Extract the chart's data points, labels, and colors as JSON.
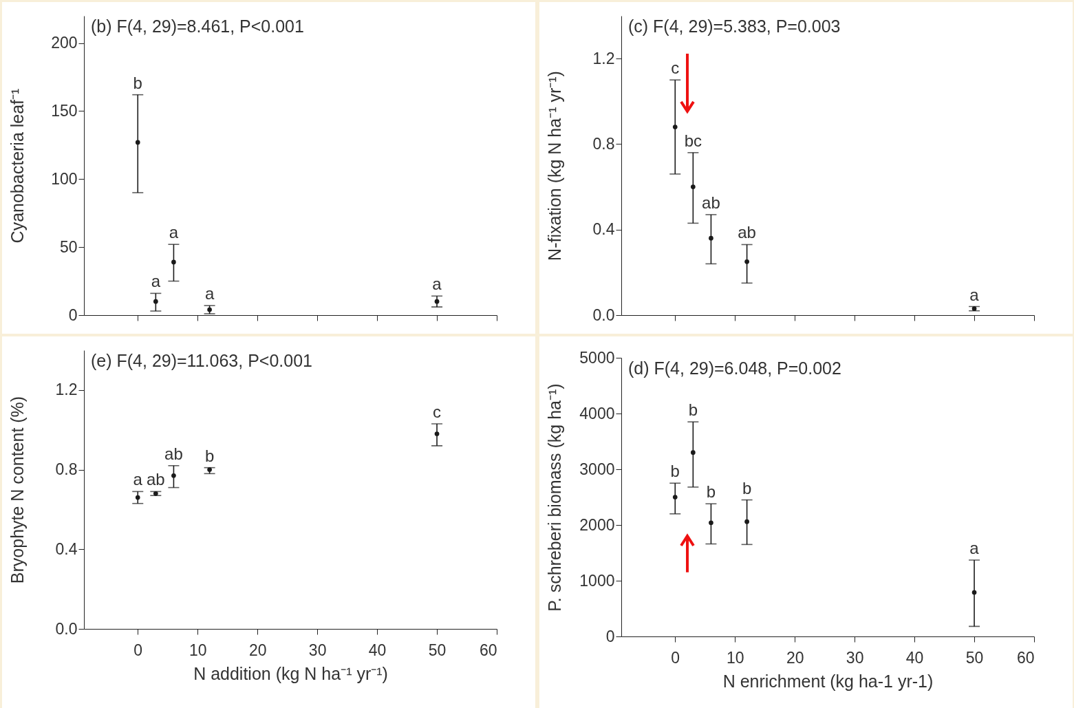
{
  "chart_data": [
    {
      "type": "scatter",
      "title": "(b)  F(4, 29)=8.461, P<0.001",
      "ylabel": "Cyanobacteria leaf⁻¹",
      "x": [
        0,
        3,
        6,
        12,
        50
      ],
      "series": [
        {
          "color": "#1a1a1a",
          "values": [
            127,
            10,
            39,
            4,
            10
          ],
          "errors": [
            [
              90,
              162
            ],
            [
              3,
              16
            ],
            [
              25,
              52
            ],
            [
              1,
              7
            ],
            [
              6,
              14
            ]
          ]
        }
      ],
      "xlim": [
        -9,
        60
      ],
      "xticks": [
        0,
        10,
        20,
        30,
        40,
        50,
        60
      ],
      "ylim": [
        0,
        220
      ],
      "yticks": [
        0,
        50,
        100,
        150,
        200
      ],
      "tick_labels": "y",
      "marker": "circle",
      "grid": false,
      "annotations": [
        "b",
        "a",
        "a",
        "a",
        "a"
      ]
    },
    {
      "type": "scatter",
      "title": "(c)  F(4, 29)=5.383, P=0.003",
      "ylabel": "N-fixation (kg N ha⁻¹ yr⁻¹)",
      "x": [
        0,
        3,
        6,
        12,
        50
      ],
      "series": [
        {
          "color": "#1a1a1a",
          "values": [
            0.88,
            0.6,
            0.36,
            0.25,
            0.03
          ],
          "errors": [
            [
              0.66,
              1.1
            ],
            [
              0.43,
              0.76
            ],
            [
              0.24,
              0.47
            ],
            [
              0.15,
              0.33
            ],
            [
              0.02,
              0.04
            ]
          ]
        }
      ],
      "xlim": [
        -9,
        60
      ],
      "xticks": [
        0,
        10,
        20,
        30,
        40,
        50,
        60
      ],
      "ylim": [
        0,
        1.4
      ],
      "yticks": [
        {
          "value": 0,
          "label": "0.0"
        },
        0.4,
        0.8,
        1.2
      ],
      "tick_labels": "y",
      "marker": "circle",
      "grid": false,
      "annotations": [
        "c",
        "bc",
        "ab",
        "ab",
        "a"
      ]
    },
    {
      "type": "scatter",
      "title": "(e)  F(4, 29)=11.063, P<0.001",
      "xlabel": "N addition (kg N ha⁻¹ yr⁻¹)",
      "ylabel": "Bryophyte N content (%)",
      "x": [
        0,
        3,
        6,
        12,
        50
      ],
      "series": [
        {
          "color": "#1a1a1a",
          "values": [
            0.66,
            0.68,
            0.77,
            0.8,
            0.98
          ],
          "errors": [
            [
              0.63,
              0.69
            ],
            [
              0.67,
              0.69
            ],
            [
              0.71,
              0.82
            ],
            [
              0.78,
              0.81
            ],
            [
              0.92,
              1.03
            ]
          ]
        }
      ],
      "xlim": [
        -9,
        60
      ],
      "xticks": [
        0,
        10,
        20,
        30,
        40,
        50,
        60
      ],
      "ylim": [
        0,
        1.4
      ],
      "yticks": [
        {
          "value": 0,
          "label": "0.0"
        },
        0.4,
        0.8,
        1.2
      ],
      "marker": "circle",
      "grid": false,
      "annotations": [
        "a",
        "ab",
        "ab",
        "b",
        "c"
      ]
    },
    {
      "type": "scatter",
      "title": "(d)  F(4, 29)=6.048, P=0.002",
      "xlabel": "N enrichment (kg ha-1 yr-1)",
      "ylabel": "P. schreberi biomass (kg ha⁻¹)",
      "x": [
        0,
        3,
        6,
        12,
        50
      ],
      "series": [
        {
          "color": "#1a1a1a",
          "values": [
            2500,
            3300,
            2040,
            2060,
            790
          ],
          "errors": [
            [
              2200,
              2750
            ],
            [
              2680,
              3850
            ],
            [
              1660,
              2380
            ],
            [
              1650,
              2450
            ],
            [
              180,
              1370
            ]
          ]
        }
      ],
      "xlim": [
        -9,
        60
      ],
      "xticks": [
        0,
        10,
        20,
        30,
        40,
        50,
        60
      ],
      "ylim": [
        0,
        5000
      ],
      "yticks": [
        0,
        1000,
        2000,
        3000,
        4000,
        5000
      ],
      "marker": "circle",
      "grid": false,
      "annotations": [
        "b",
        "b",
        "b",
        "b",
        "a"
      ]
    }
  ]
}
